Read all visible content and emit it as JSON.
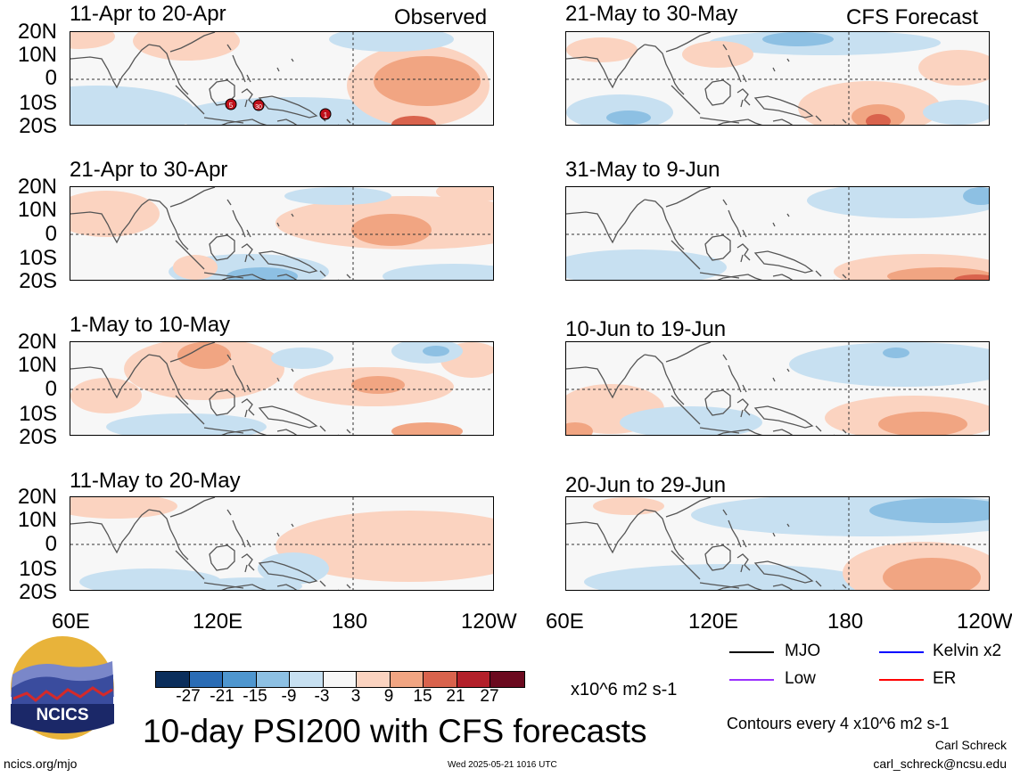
{
  "header": {
    "left_tag": "Observed",
    "right_tag": "CFS Forecast"
  },
  "latitude_labels": [
    "20N",
    "10N",
    "0",
    "10S",
    "20S"
  ],
  "longitude_labels": [
    "60E",
    "120E",
    "180",
    "120W"
  ],
  "panels_observed": [
    {
      "title": "11-Apr to 20-Apr"
    },
    {
      "title": "21-Apr to 30-Apr"
    },
    {
      "title": "1-May to 10-May"
    },
    {
      "title": "11-May to 20-May"
    }
  ],
  "panels_forecast": [
    {
      "title": "21-May to 30-May"
    },
    {
      "title": "31-May to 9-Jun"
    },
    {
      "title": "10-Jun to 19-Jun"
    },
    {
      "title": "20-Jun to 29-Jun"
    }
  ],
  "storm_markers": [
    "5",
    "30",
    "1"
  ],
  "colorbar": {
    "tick_labels": [
      "-27",
      "-21",
      "-15",
      "-9",
      "-3",
      "3",
      "9",
      "15",
      "21",
      "27"
    ],
    "colors": [
      "#0b2e5c",
      "#2a6cb5",
      "#4e96cf",
      "#8dc0e3",
      "#c7e0f1",
      "#f7f7f7",
      "#fbd3c0",
      "#f1a582",
      "#d9634d",
      "#b3202a",
      "#6b0a1f"
    ],
    "units": "x10^6 m2 s-1"
  },
  "legend": [
    {
      "label": "MJO",
      "color": "#000000"
    },
    {
      "label": "Kelvin x2",
      "color": "#0000ff"
    },
    {
      "label": "Low",
      "color": "#9b30ff"
    },
    {
      "label": "ER",
      "color": "#ff0000"
    }
  ],
  "logo": {
    "text": "NCICS"
  },
  "main_title": "10-day PSI200 with CFS forecasts",
  "contours_note": "Contours every 4 x10^6 m2 s-1",
  "author": "Carl Schreck",
  "email": "carl_schreck@ncsu.edu",
  "website": "ncics.org/mjo",
  "timestamp": "Wed 2025-05-21 1016 UTC"
}
